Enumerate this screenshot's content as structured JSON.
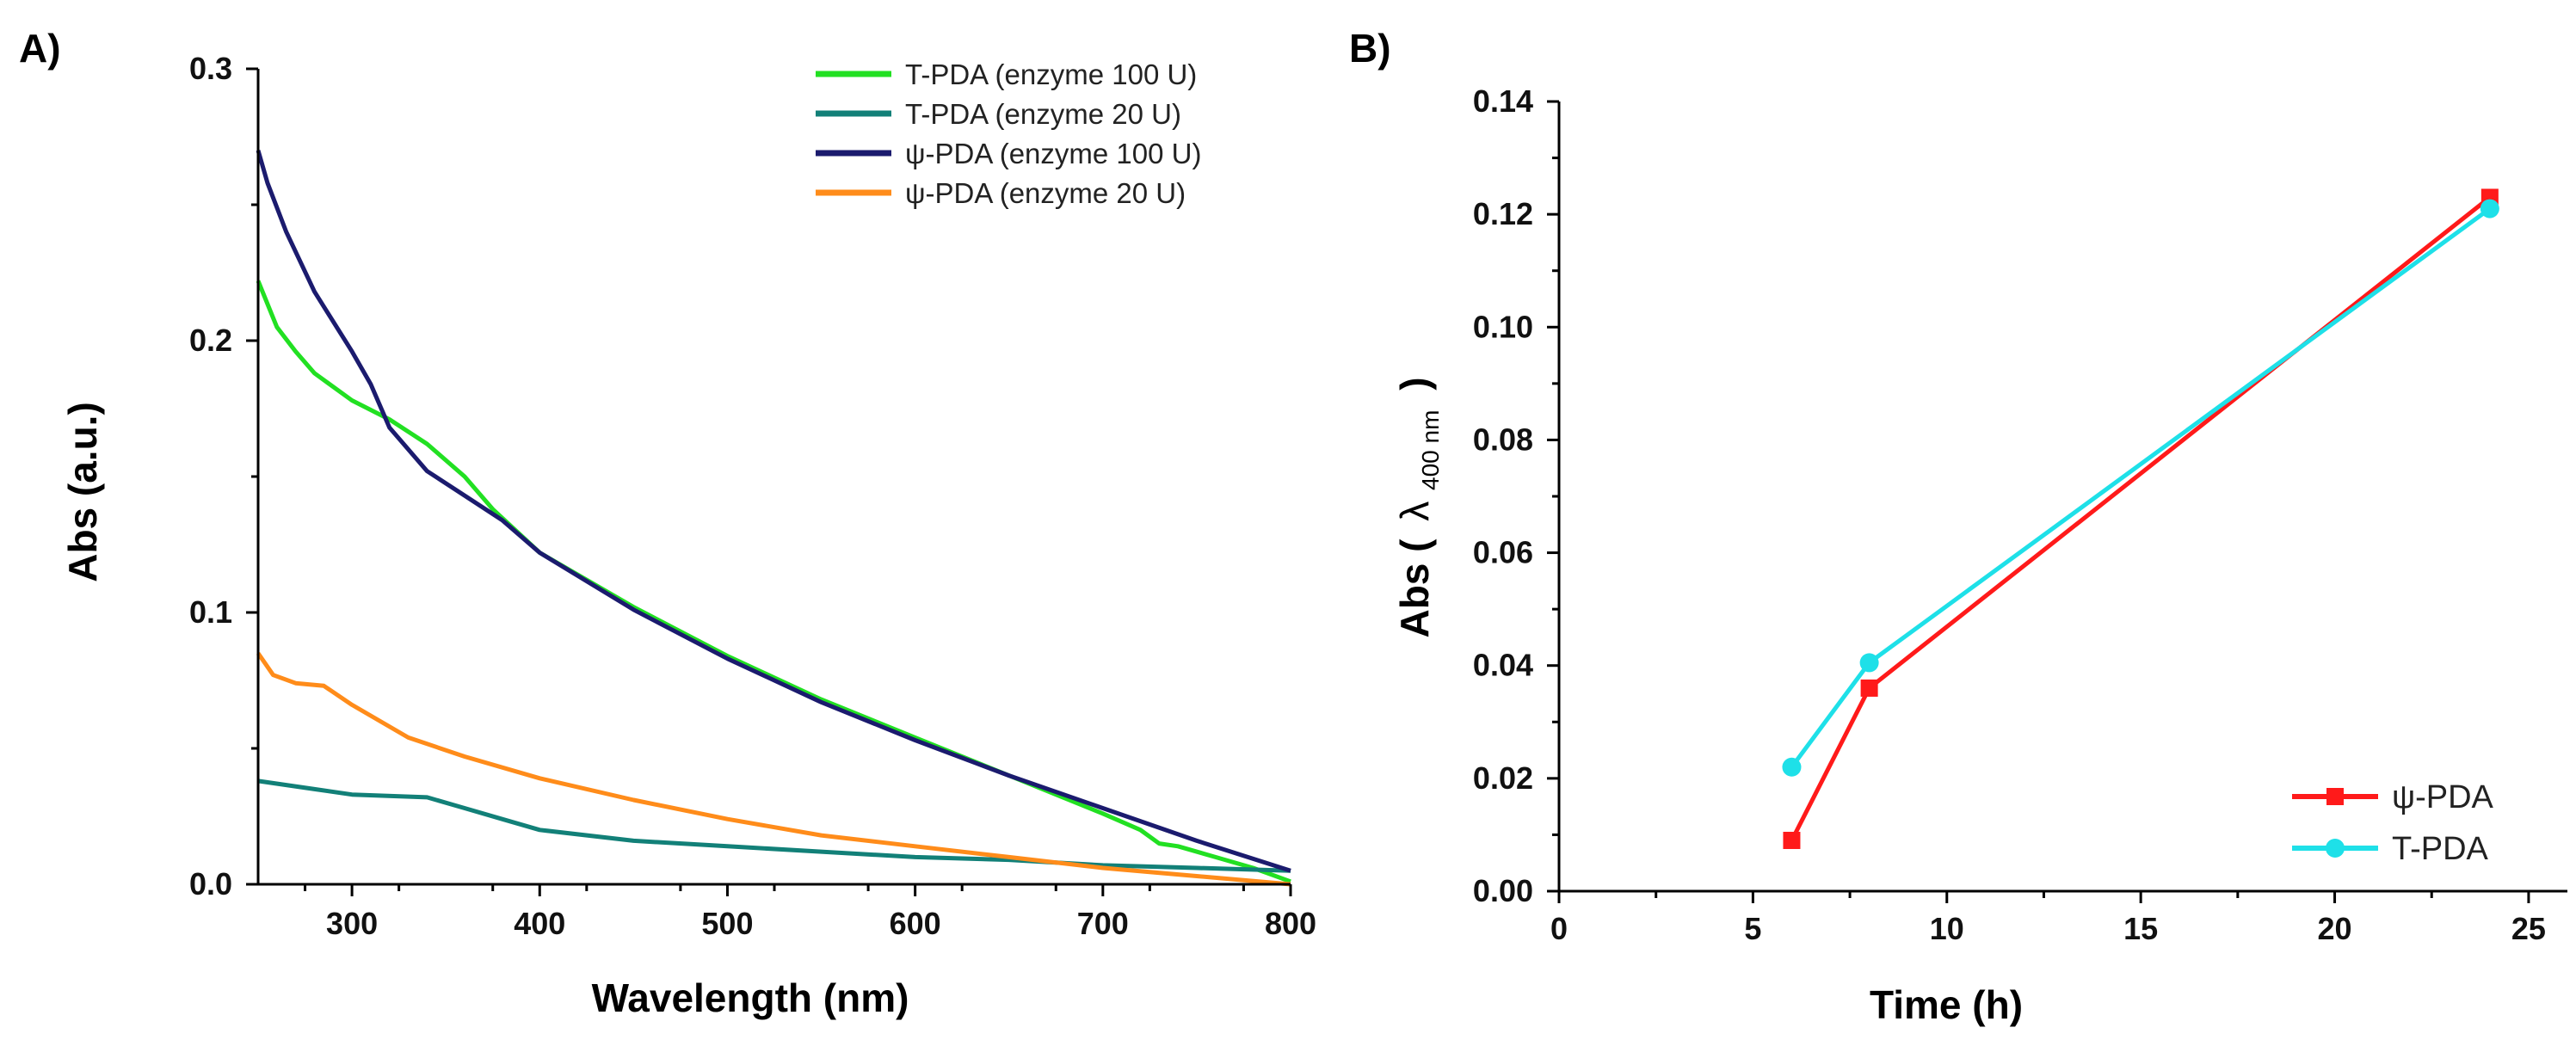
{
  "chart_data": [
    {
      "panel_label": "A)",
      "type": "line",
      "xlabel": "Wavelength (nm)",
      "ylabel": "Abs (a.u.)",
      "xlim": [
        250,
        800
      ],
      "ylim": [
        0,
        0.3
      ],
      "xticks": [
        300,
        400,
        500,
        600,
        700,
        800
      ],
      "xtick_labels": [
        "300",
        "400",
        "500",
        "600",
        "700",
        "800"
      ],
      "yticks": [
        0.0,
        0.1,
        0.2,
        0.3
      ],
      "ytick_labels": [
        "0.0",
        "0.1",
        "0.2",
        "0.3"
      ],
      "legend_position": "top-right",
      "series": [
        {
          "name": "T-PDA (enzyme 100 U)",
          "color": "#22e022",
          "x": [
            250,
            260,
            270,
            280,
            300,
            320,
            340,
            360,
            375,
            400,
            450,
            500,
            550,
            600,
            650,
            700,
            720,
            730,
            740,
            760,
            780,
            800
          ],
          "y": [
            0.222,
            0.205,
            0.196,
            0.188,
            0.178,
            0.171,
            0.162,
            0.15,
            0.138,
            0.122,
            0.102,
            0.084,
            0.068,
            0.054,
            0.04,
            0.026,
            0.02,
            0.015,
            0.014,
            0.01,
            0.006,
            0.001
          ]
        },
        {
          "name": "T-PDA (enzyme 20 U)",
          "color": "#128078",
          "x": [
            250,
            280,
            300,
            340,
            360,
            380,
            400,
            450,
            500,
            550,
            600,
            650,
            700,
            750,
            800
          ],
          "y": [
            0.038,
            0.035,
            0.033,
            0.032,
            0.028,
            0.024,
            0.02,
            0.016,
            0.014,
            0.012,
            0.01,
            0.009,
            0.007,
            0.006,
            0.005
          ]
        },
        {
          "name": "ψ-PDA (enzyme 100 U)",
          "color": "#1b1b6e",
          "x": [
            250,
            255,
            265,
            280,
            300,
            310,
            320,
            340,
            360,
            380,
            400,
            450,
            500,
            550,
            600,
            650,
            700,
            750,
            800
          ],
          "y": [
            0.27,
            0.258,
            0.24,
            0.218,
            0.196,
            0.184,
            0.168,
            0.152,
            0.143,
            0.134,
            0.122,
            0.101,
            0.083,
            0.067,
            0.053,
            0.04,
            0.028,
            0.016,
            0.005
          ]
        },
        {
          "name": "ψ-PDA (enzyme 20 U)",
          "color": "#ff8c1a",
          "x": [
            250,
            258,
            270,
            285,
            300,
            330,
            360,
            400,
            450,
            500,
            550,
            600,
            650,
            700,
            750,
            800
          ],
          "y": [
            0.085,
            0.077,
            0.074,
            0.073,
            0.066,
            0.054,
            0.047,
            0.039,
            0.031,
            0.024,
            0.018,
            0.014,
            0.01,
            0.006,
            0.003,
            0.0
          ]
        }
      ]
    },
    {
      "panel_label": "B)",
      "type": "line",
      "xlabel": "Time (h)",
      "ylabel_main": "Abs (",
      "ylabel_symbol": "λ",
      "ylabel_subscript": "400 nm",
      "ylabel_close": ")",
      "xlim": [
        0,
        26
      ],
      "ylim": [
        0,
        0.14
      ],
      "xticks": [
        0,
        5,
        10,
        15,
        20,
        25
      ],
      "xtick_labels": [
        "0",
        "5",
        "10",
        "15",
        "20",
        "25"
      ],
      "yticks": [
        0.0,
        0.02,
        0.04,
        0.06,
        0.08,
        0.1,
        0.12,
        0.14
      ],
      "ytick_labels": [
        "0.00",
        "0.02",
        "0.04",
        "0.06",
        "0.08",
        "0.10",
        "0.12",
        "0.14"
      ],
      "legend_position": "bottom-right",
      "series": [
        {
          "name": "ψ-PDA",
          "color": "#ff1a1a",
          "marker": "square",
          "x": [
            6,
            8,
            24
          ],
          "y": [
            0.009,
            0.036,
            0.123
          ]
        },
        {
          "name": "T-PDA",
          "color": "#1ee0e8",
          "marker": "circle",
          "x": [
            6,
            8,
            24
          ],
          "y": [
            0.022,
            0.0405,
            0.121
          ]
        }
      ]
    }
  ]
}
